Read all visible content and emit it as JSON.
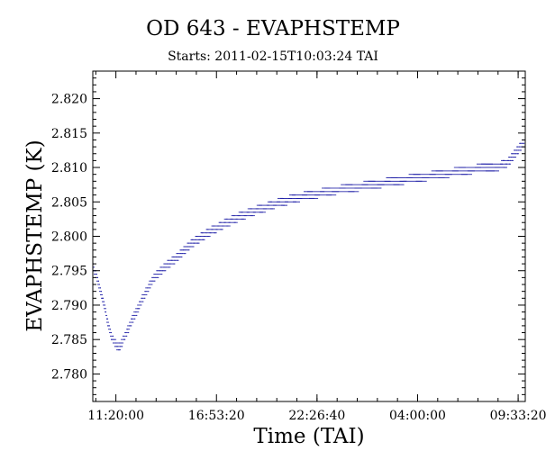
{
  "chart_data": {
    "type": "scatter",
    "title": "OD 643 - EVAPHSTEMP",
    "subtitle": "Starts: 2011-02-15T10:03:24 TAI",
    "xlabel": "Time (TAI)",
    "ylabel": "EVAPHSTEMP (K)",
    "x_tick_labels": [
      "11:20:00",
      "16:53:20",
      "22:26:40",
      "04:00:00",
      "09:33:20"
    ],
    "y_ticks": [
      2.78,
      2.785,
      2.79,
      2.795,
      2.8,
      2.805,
      2.81,
      2.815,
      2.82
    ],
    "y_tick_labels": [
      "2.780",
      "2.785",
      "2.790",
      "2.795",
      "2.800",
      "2.805",
      "2.810",
      "2.815",
      "2.820"
    ],
    "ylim": [
      2.776,
      2.824
    ],
    "xlim_hours": [
      10.057,
      33.95
    ],
    "x_tick_hours": [
      11.333,
      16.889,
      22.444,
      28.0,
      33.556
    ],
    "grid": false,
    "series": [
      {
        "color": "#1c1ca6",
        "points": [
          [
            10.06,
            2.7955
          ],
          [
            10.2,
            2.7945
          ],
          [
            10.35,
            2.793
          ],
          [
            10.55,
            2.791
          ],
          [
            10.75,
            2.789
          ],
          [
            10.9,
            2.787
          ],
          [
            11.05,
            2.7855
          ],
          [
            11.2,
            2.7848
          ],
          [
            11.35,
            2.7842
          ],
          [
            11.5,
            2.784
          ],
          [
            11.65,
            2.7845
          ],
          [
            11.8,
            2.7855
          ],
          [
            12.0,
            2.7865
          ],
          [
            12.2,
            2.7878
          ],
          [
            12.45,
            2.789
          ],
          [
            12.7,
            2.7905
          ],
          [
            13.0,
            2.792
          ],
          [
            13.3,
            2.7935
          ],
          [
            13.6,
            2.7945
          ],
          [
            13.9,
            2.7952
          ],
          [
            14.2,
            2.796
          ],
          [
            14.5,
            2.7965
          ],
          [
            14.8,
            2.7972
          ],
          [
            15.1,
            2.798
          ],
          [
            15.4,
            2.7987
          ],
          [
            15.7,
            2.7993
          ],
          [
            16.0,
            2.7998
          ],
          [
            16.3,
            2.8003
          ],
          [
            16.6,
            2.8008
          ],
          [
            16.9,
            2.8012
          ],
          [
            17.3,
            2.8018
          ],
          [
            17.7,
            2.8023
          ],
          [
            18.1,
            2.8028
          ],
          [
            18.5,
            2.8032
          ],
          [
            18.9,
            2.8036
          ],
          [
            19.3,
            2.804
          ],
          [
            19.7,
            2.8043
          ],
          [
            20.1,
            2.8047
          ],
          [
            20.5,
            2.805
          ],
          [
            20.9,
            2.8053
          ],
          [
            21.3,
            2.8056
          ],
          [
            21.7,
            2.8058
          ],
          [
            22.1,
            2.806
          ],
          [
            22.5,
            2.8062
          ],
          [
            23.0,
            2.8065
          ],
          [
            23.5,
            2.8067
          ],
          [
            24.0,
            2.8069
          ],
          [
            24.5,
            2.8071
          ],
          [
            25.0,
            2.8073
          ],
          [
            25.5,
            2.8075
          ],
          [
            26.0,
            2.8077
          ],
          [
            26.5,
            2.8079
          ],
          [
            27.0,
            2.8081
          ],
          [
            27.5,
            2.8083
          ],
          [
            28.0,
            2.8085
          ],
          [
            28.5,
            2.8087
          ],
          [
            29.0,
            2.8089
          ],
          [
            29.5,
            2.8091
          ],
          [
            30.0,
            2.8093
          ],
          [
            30.5,
            2.8095
          ],
          [
            31.0,
            2.8097
          ],
          [
            31.5,
            2.8099
          ],
          [
            32.0,
            2.81
          ],
          [
            32.5,
            2.8102
          ],
          [
            33.0,
            2.8108
          ],
          [
            33.3,
            2.8118
          ],
          [
            33.6,
            2.8128
          ],
          [
            33.9,
            2.8138
          ]
        ]
      }
    ]
  }
}
